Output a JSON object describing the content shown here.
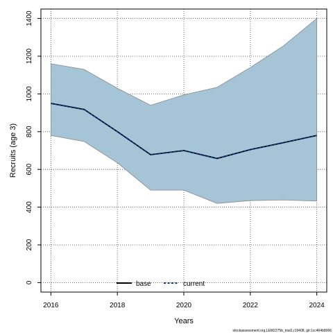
{
  "chart_data": {
    "type": "line",
    "xlabel": "Years",
    "ylabel": "Recruits (age 3)",
    "xlim": [
      2015.7,
      2024.3
    ],
    "ylim": [
      -50,
      1450
    ],
    "x_ticks": [
      2016,
      2018,
      2020,
      2022,
      2024
    ],
    "x_tick_labels": [
      "2016",
      "2018",
      "2020",
      "2022",
      "2024"
    ],
    "y_ticks": [
      0,
      200,
      400,
      600,
      800,
      1000,
      1200,
      1400
    ],
    "y_tick_labels": [
      "0",
      "200",
      "400",
      "600",
      "800",
      "1000",
      "1200",
      "1400"
    ],
    "grid": true,
    "x": [
      2016,
      2017,
      2018,
      2019,
      2020,
      2021,
      2022,
      2023,
      2024
    ],
    "band": {
      "upper": [
        1160,
        1130,
        1030,
        940,
        995,
        1035,
        1140,
        1255,
        1400
      ],
      "lower": [
        780,
        748,
        635,
        490,
        490,
        420,
        435,
        438,
        432
      ],
      "fill_color": "#a5c4d6",
      "stroke_color": "#888888"
    },
    "series": [
      {
        "name": "base",
        "style": "solid",
        "color": "#000000",
        "values": [
          950,
          918,
          800,
          678,
          700,
          658,
          705,
          742,
          780
        ]
      },
      {
        "name": "current",
        "style": "dotted",
        "color": "#0a3a8c",
        "values": [
          950,
          918,
          800,
          678,
          700,
          658,
          705,
          742,
          780
        ]
      }
    ],
    "legend": {
      "placement": "bottom-center"
    },
    "footnote": "stockassessment.org,LEM2275b_trial1,r19408, git:1cc464b8066"
  }
}
